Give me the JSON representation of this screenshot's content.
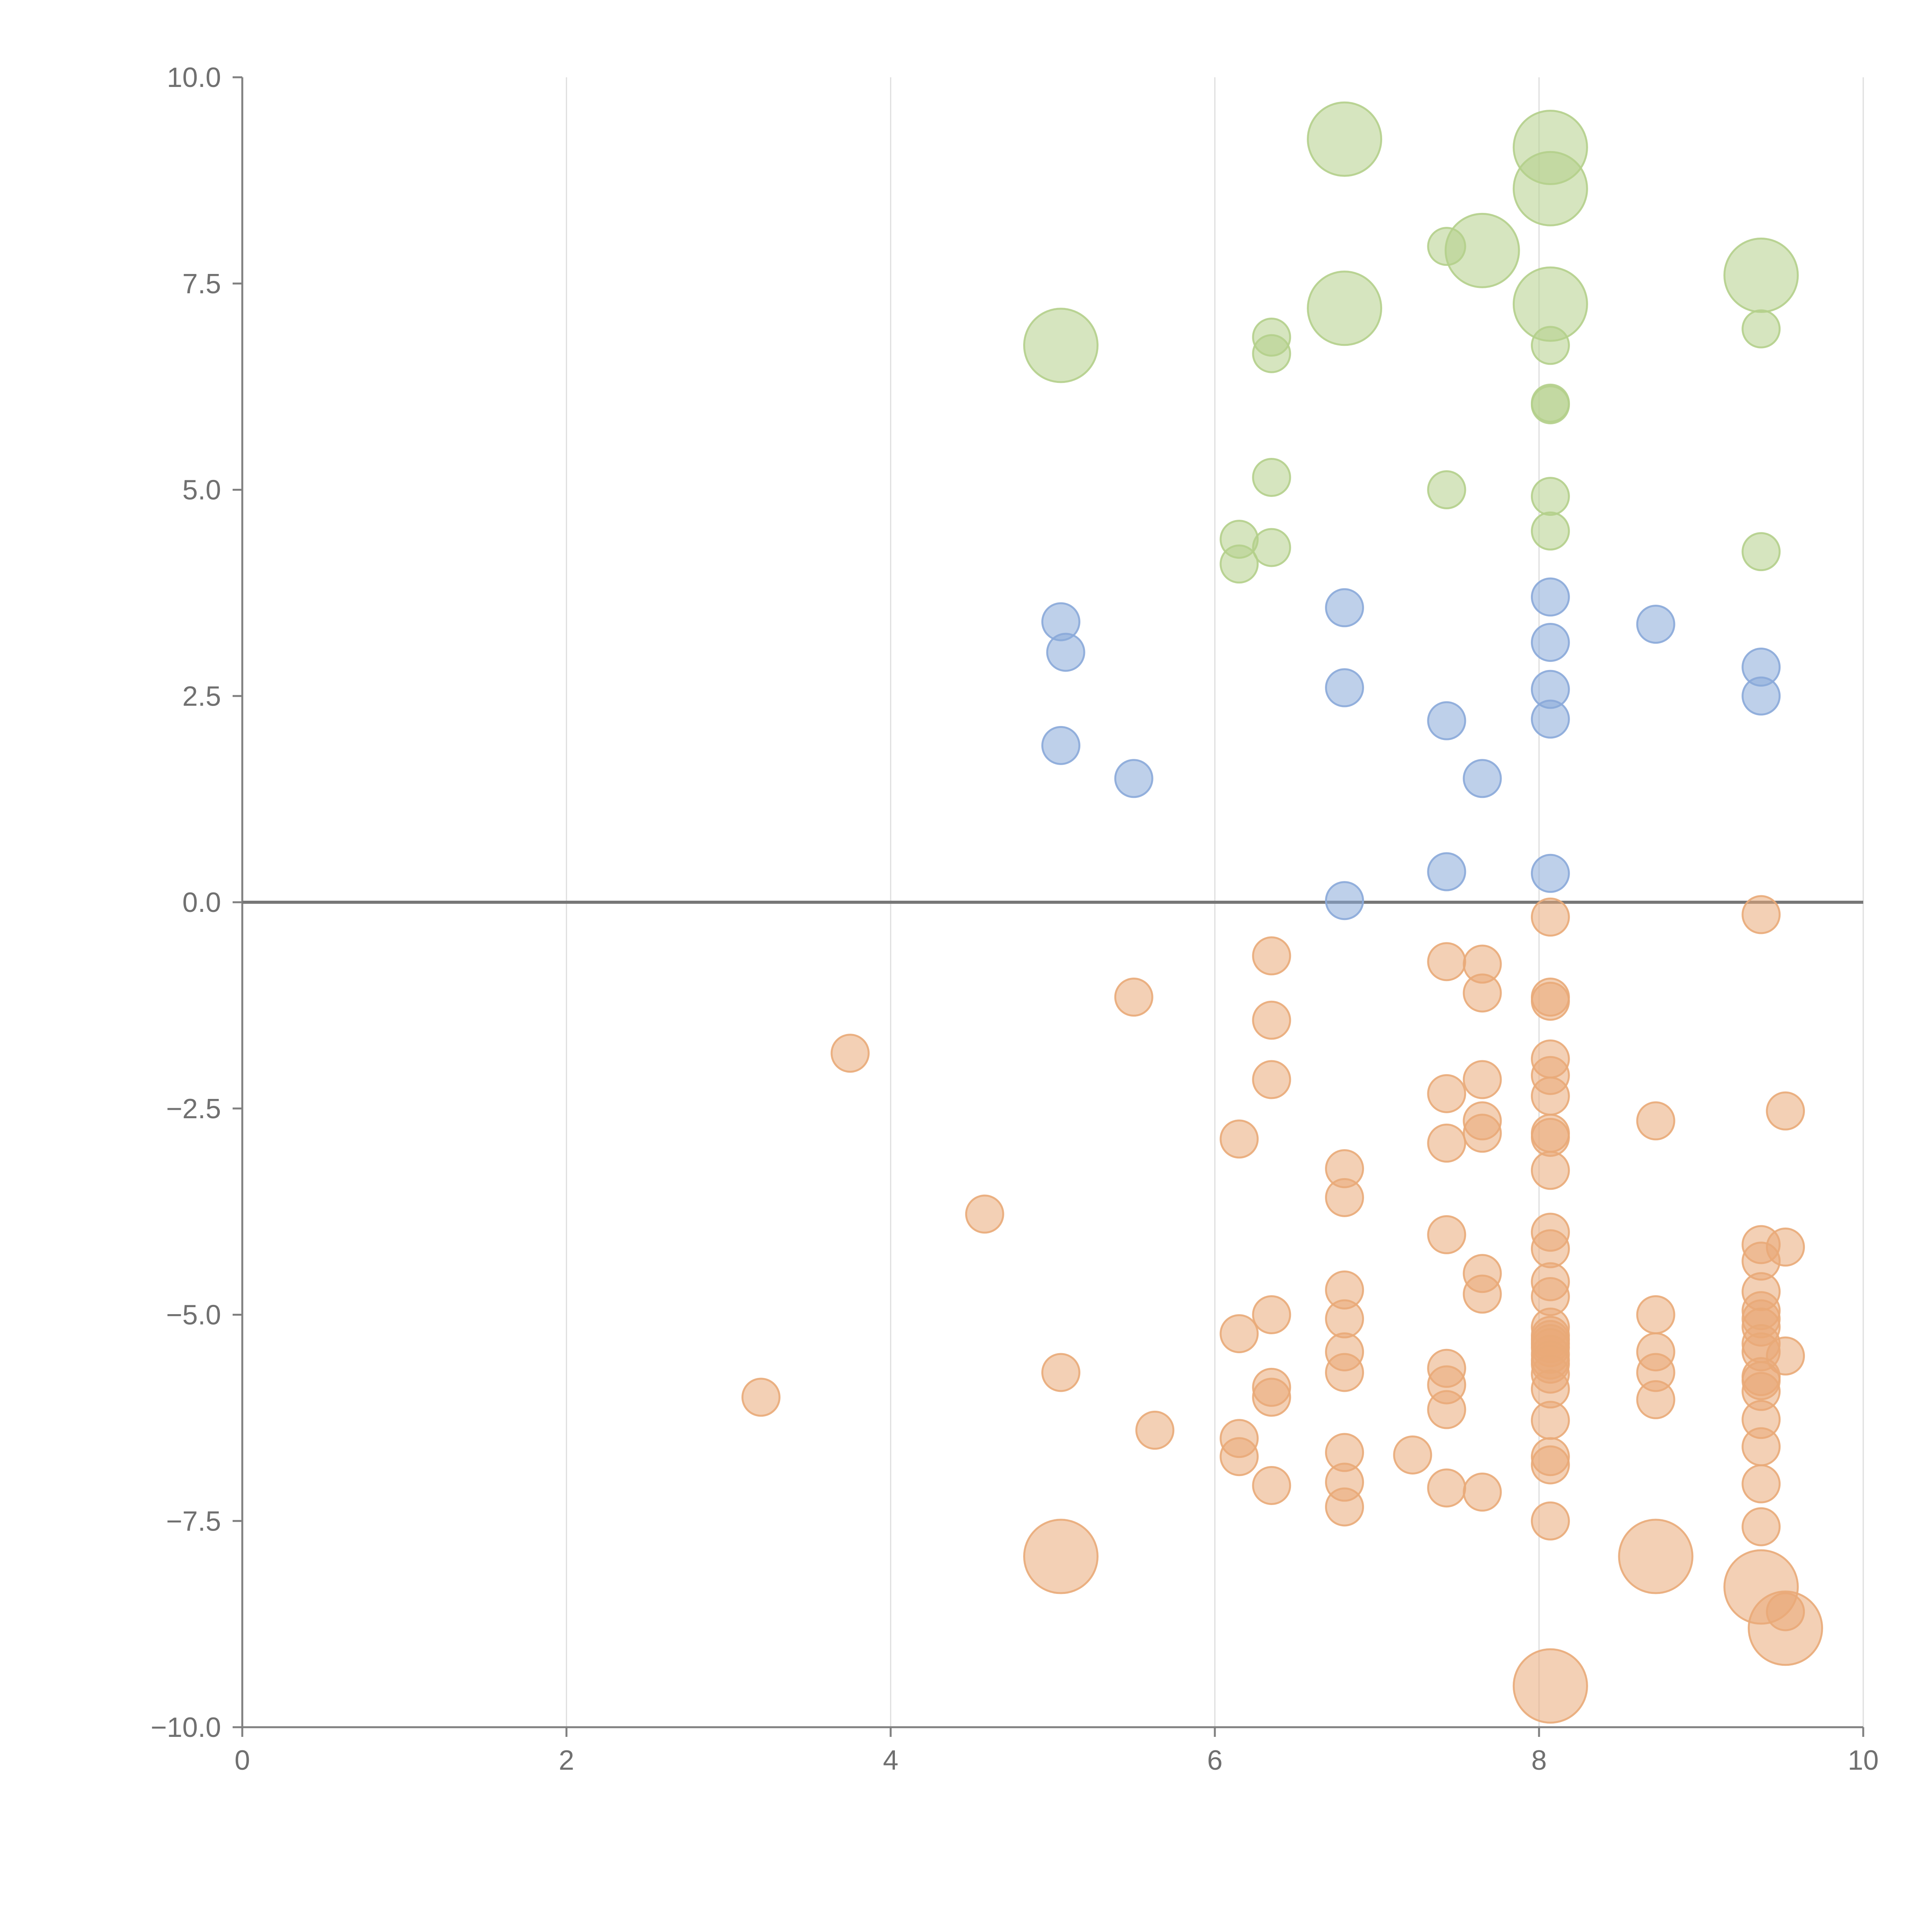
{
  "chart_data": {
    "type": "scatter",
    "title": "",
    "xlabel": "",
    "ylabel": "",
    "xlim": [
      0,
      10
    ],
    "ylim": [
      -10,
      10
    ],
    "x_ticks": [
      "0",
      "2",
      "4",
      "6",
      "8",
      "10"
    ],
    "y_ticks": [
      "−10.0",
      "−7.5",
      "−5.0",
      "−2.5",
      "0.0",
      "2.5",
      "5.0",
      "7.5",
      "10.0"
    ],
    "grid": {
      "vertical": true,
      "horizontal": false
    },
    "zero_line": true,
    "legend": "none",
    "series": [
      {
        "color": "#b4cf8b",
        "points": [
          [
            6.8,
            9.25,
            "large"
          ],
          [
            8.07,
            9.15,
            "large"
          ],
          [
            8.07,
            8.65,
            "large"
          ],
          [
            7.65,
            7.9,
            "large"
          ],
          [
            7.43,
            7.95,
            "small"
          ],
          [
            9.37,
            7.6,
            "large"
          ],
          [
            6.8,
            7.2,
            "large"
          ],
          [
            8.07,
            7.25,
            "large"
          ],
          [
            5.05,
            6.75,
            "large"
          ],
          [
            6.35,
            6.85,
            "small"
          ],
          [
            6.35,
            6.65,
            "small"
          ],
          [
            8.07,
            6.75,
            "small"
          ],
          [
            9.37,
            6.95,
            "small"
          ],
          [
            8.07,
            6.05,
            "small"
          ],
          [
            8.07,
            6.03,
            "small"
          ],
          [
            6.35,
            5.15,
            "small"
          ],
          [
            7.43,
            5.0,
            "small"
          ],
          [
            8.07,
            4.92,
            "small"
          ],
          [
            8.07,
            4.5,
            "small"
          ],
          [
            6.15,
            4.4,
            "small"
          ],
          [
            6.35,
            4.3,
            "small"
          ],
          [
            6.15,
            4.1,
            "small"
          ],
          [
            9.37,
            4.25,
            "small"
          ]
        ]
      },
      {
        "color": "#89a9d9",
        "points": [
          [
            8.07,
            3.7,
            "small"
          ],
          [
            6.8,
            3.57,
            "small"
          ],
          [
            5.05,
            3.4,
            "small"
          ],
          [
            8.72,
            3.37,
            "small"
          ],
          [
            8.07,
            3.15,
            "small"
          ],
          [
            5.08,
            3.03,
            "small"
          ],
          [
            9.37,
            2.85,
            "small"
          ],
          [
            6.8,
            2.6,
            "small"
          ],
          [
            8.07,
            2.58,
            "small"
          ],
          [
            9.37,
            2.5,
            "small"
          ],
          [
            7.43,
            2.2,
            "small"
          ],
          [
            8.07,
            2.22,
            "small"
          ],
          [
            5.05,
            1.9,
            "small"
          ],
          [
            5.5,
            1.5,
            "small"
          ],
          [
            7.65,
            1.5,
            "small"
          ],
          [
            7.43,
            0.37,
            "small"
          ],
          [
            8.07,
            0.35,
            "small"
          ],
          [
            6.8,
            0.02,
            "small"
          ]
        ]
      },
      {
        "color": "#e9aa78",
        "points": [
          [
            8.07,
            -0.18,
            "small"
          ],
          [
            9.37,
            -0.15,
            "small"
          ],
          [
            6.35,
            -0.65,
            "small"
          ],
          [
            7.43,
            -0.72,
            "small"
          ],
          [
            7.65,
            -0.75,
            "small"
          ],
          [
            5.5,
            -1.15,
            "small"
          ],
          [
            7.65,
            -1.1,
            "small"
          ],
          [
            8.07,
            -1.15,
            "small"
          ],
          [
            8.07,
            -1.2,
            "small"
          ],
          [
            6.35,
            -1.43,
            "small"
          ],
          [
            3.75,
            -1.83,
            "small"
          ],
          [
            8.07,
            -1.9,
            "small"
          ],
          [
            8.07,
            -2.1,
            "small"
          ],
          [
            6.35,
            -2.15,
            "small"
          ],
          [
            7.65,
            -2.15,
            "small"
          ],
          [
            7.43,
            -2.32,
            "small"
          ],
          [
            8.07,
            -2.35,
            "small"
          ],
          [
            9.52,
            -2.53,
            "small"
          ],
          [
            8.72,
            -2.65,
            "small"
          ],
          [
            7.65,
            -2.65,
            "small"
          ],
          [
            7.65,
            -2.8,
            "small"
          ],
          [
            8.07,
            -2.8,
            "small"
          ],
          [
            8.07,
            -2.85,
            "small"
          ],
          [
            6.15,
            -2.87,
            "small"
          ],
          [
            7.43,
            -2.92,
            "small"
          ],
          [
            6.8,
            -3.23,
            "small"
          ],
          [
            8.07,
            -3.25,
            "small"
          ],
          [
            6.8,
            -3.58,
            "small"
          ],
          [
            4.58,
            -3.78,
            "small"
          ],
          [
            8.07,
            -4.0,
            "small"
          ],
          [
            7.43,
            -4.03,
            "small"
          ],
          [
            9.37,
            -4.15,
            "small"
          ],
          [
            9.52,
            -4.18,
            "small"
          ],
          [
            8.07,
            -4.2,
            "small"
          ],
          [
            9.37,
            -4.35,
            "small"
          ],
          [
            7.65,
            -4.5,
            "small"
          ],
          [
            8.07,
            -4.6,
            "small"
          ],
          [
            6.8,
            -4.7,
            "small"
          ],
          [
            9.37,
            -4.72,
            "small"
          ],
          [
            7.65,
            -4.75,
            "small"
          ],
          [
            8.07,
            -4.78,
            "small"
          ],
          [
            6.35,
            -5.0,
            "small"
          ],
          [
            8.72,
            -5.0,
            "small"
          ],
          [
            9.37,
            -4.95,
            "small"
          ],
          [
            6.8,
            -5.05,
            "small"
          ],
          [
            9.37,
            -5.05,
            "small"
          ],
          [
            9.37,
            -5.15,
            "small"
          ],
          [
            8.07,
            -5.15,
            "small"
          ],
          [
            6.15,
            -5.23,
            "small"
          ],
          [
            8.07,
            -5.25,
            "small"
          ],
          [
            8.07,
            -5.3,
            "small"
          ],
          [
            8.07,
            -5.35,
            "small"
          ],
          [
            9.37,
            -5.35,
            "small"
          ],
          [
            8.07,
            -5.4,
            "small"
          ],
          [
            9.37,
            -5.45,
            "small"
          ],
          [
            6.8,
            -5.45,
            "small"
          ],
          [
            8.72,
            -5.45,
            "small"
          ],
          [
            8.07,
            -5.48,
            "small"
          ],
          [
            9.52,
            -5.5,
            "small"
          ],
          [
            8.07,
            -5.55,
            "small"
          ],
          [
            8.07,
            -5.6,
            "small"
          ],
          [
            7.43,
            -5.65,
            "small"
          ],
          [
            5.05,
            -5.7,
            "small"
          ],
          [
            6.8,
            -5.7,
            "small"
          ],
          [
            8.72,
            -5.7,
            "small"
          ],
          [
            8.07,
            -5.72,
            "small"
          ],
          [
            9.37,
            -5.75,
            "small"
          ],
          [
            9.37,
            -5.8,
            "small"
          ],
          [
            7.43,
            -5.85,
            "small"
          ],
          [
            6.35,
            -5.88,
            "small"
          ],
          [
            8.07,
            -5.9,
            "small"
          ],
          [
            9.37,
            -5.93,
            "small"
          ],
          [
            6.35,
            -6.0,
            "small"
          ],
          [
            3.2,
            -6.0,
            "small"
          ],
          [
            8.72,
            -6.03,
            "small"
          ],
          [
            7.43,
            -6.15,
            "small"
          ],
          [
            8.07,
            -6.28,
            "small"
          ],
          [
            9.37,
            -6.27,
            "small"
          ],
          [
            5.63,
            -6.4,
            "small"
          ],
          [
            6.15,
            -6.5,
            "small"
          ],
          [
            9.37,
            -6.6,
            "small"
          ],
          [
            6.8,
            -6.67,
            "small"
          ],
          [
            7.22,
            -6.7,
            "small"
          ],
          [
            6.15,
            -6.72,
            "small"
          ],
          [
            8.07,
            -6.72,
            "small"
          ],
          [
            8.07,
            -6.82,
            "small"
          ],
          [
            6.8,
            -7.03,
            "small"
          ],
          [
            6.35,
            -7.07,
            "small"
          ],
          [
            9.37,
            -7.05,
            "small"
          ],
          [
            7.43,
            -7.1,
            "small"
          ],
          [
            7.65,
            -7.15,
            "small"
          ],
          [
            6.8,
            -7.33,
            "small"
          ],
          [
            8.07,
            -7.5,
            "small"
          ],
          [
            9.37,
            -7.57,
            "small"
          ],
          [
            5.05,
            -7.93,
            "large"
          ],
          [
            8.72,
            -7.93,
            "large"
          ],
          [
            9.37,
            -8.3,
            "large"
          ],
          [
            9.52,
            -8.6,
            "small"
          ],
          [
            9.52,
            -8.8,
            "large"
          ],
          [
            8.07,
            -9.5,
            "large"
          ]
        ]
      }
    ]
  }
}
